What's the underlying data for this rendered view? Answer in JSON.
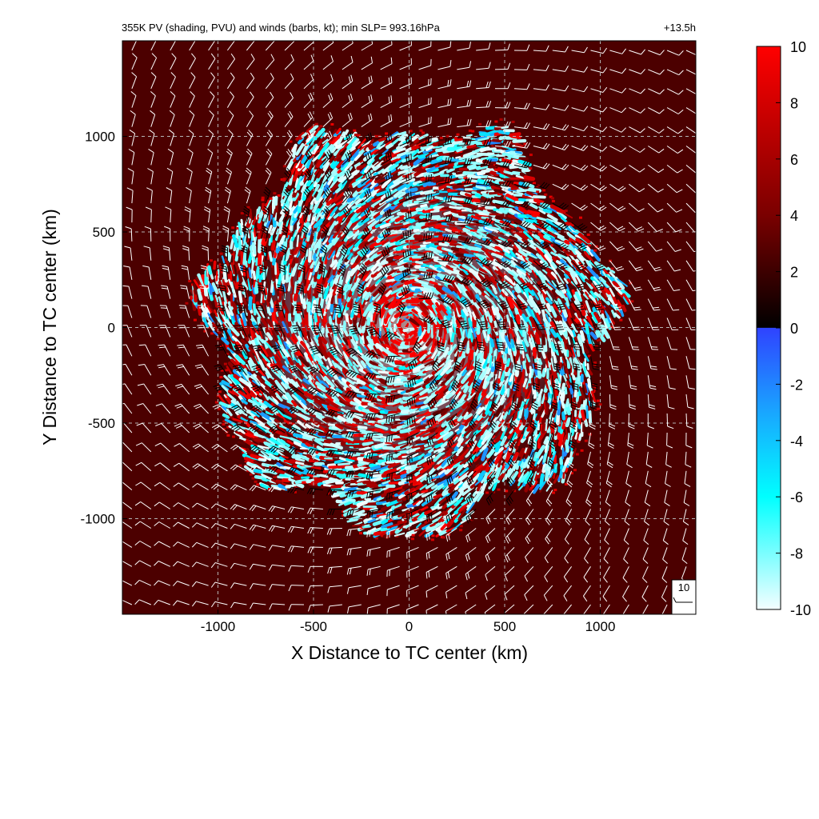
{
  "chart_data": {
    "type": "heatmap",
    "title": "355K PV (shading, PVU) and winds (barbs, kt); min SLP= 993.16hPa",
    "time_label": "+13.5h",
    "xlabel": "X Distance to TC center (km)",
    "ylabel": "Y Distance to TC center (km)",
    "xlim": [
      -1500,
      1500
    ],
    "ylim": [
      -1500,
      1500
    ],
    "x_ticks": [
      -1000,
      -500,
      0,
      500,
      1000
    ],
    "y_ticks": [
      -1000,
      -500,
      0,
      500,
      1000
    ],
    "x_tick_labels": [
      "-1000",
      "-500",
      "0",
      "500",
      "1000"
    ],
    "y_tick_labels": [
      "-1000",
      "-500",
      "0",
      "500",
      "1000"
    ],
    "grid": true,
    "grid_values": [
      -1000,
      -500,
      0,
      500,
      1000
    ],
    "colorbar": {
      "range": [
        -10,
        10
      ],
      "ticks": [
        10,
        8,
        6,
        4,
        2,
        0,
        -2,
        -4,
        -6,
        -8,
        -10
      ],
      "tick_labels": [
        "10",
        "8",
        "6",
        "4",
        "2",
        "0",
        "-2",
        "-4",
        "-6",
        "-8",
        "-10"
      ],
      "stops": [
        {
          "value": -10,
          "color": "#f4feff"
        },
        {
          "value": -6,
          "color": "#00ffff"
        },
        {
          "value": -3,
          "color": "#19a6ff"
        },
        {
          "value": 0,
          "color": "#2f43ff"
        },
        {
          "value": 0.01,
          "color": "#000000"
        },
        {
          "value": 4,
          "color": "#7a0000"
        },
        {
          "value": 10,
          "color": "#ff0000"
        }
      ]
    },
    "background_pv": 2.5,
    "vortex_radius_km": 1050,
    "wind_barb_reference": {
      "label": "10",
      "speed_kt": 10
    },
    "wind_barb_spacing_km": 100
  }
}
